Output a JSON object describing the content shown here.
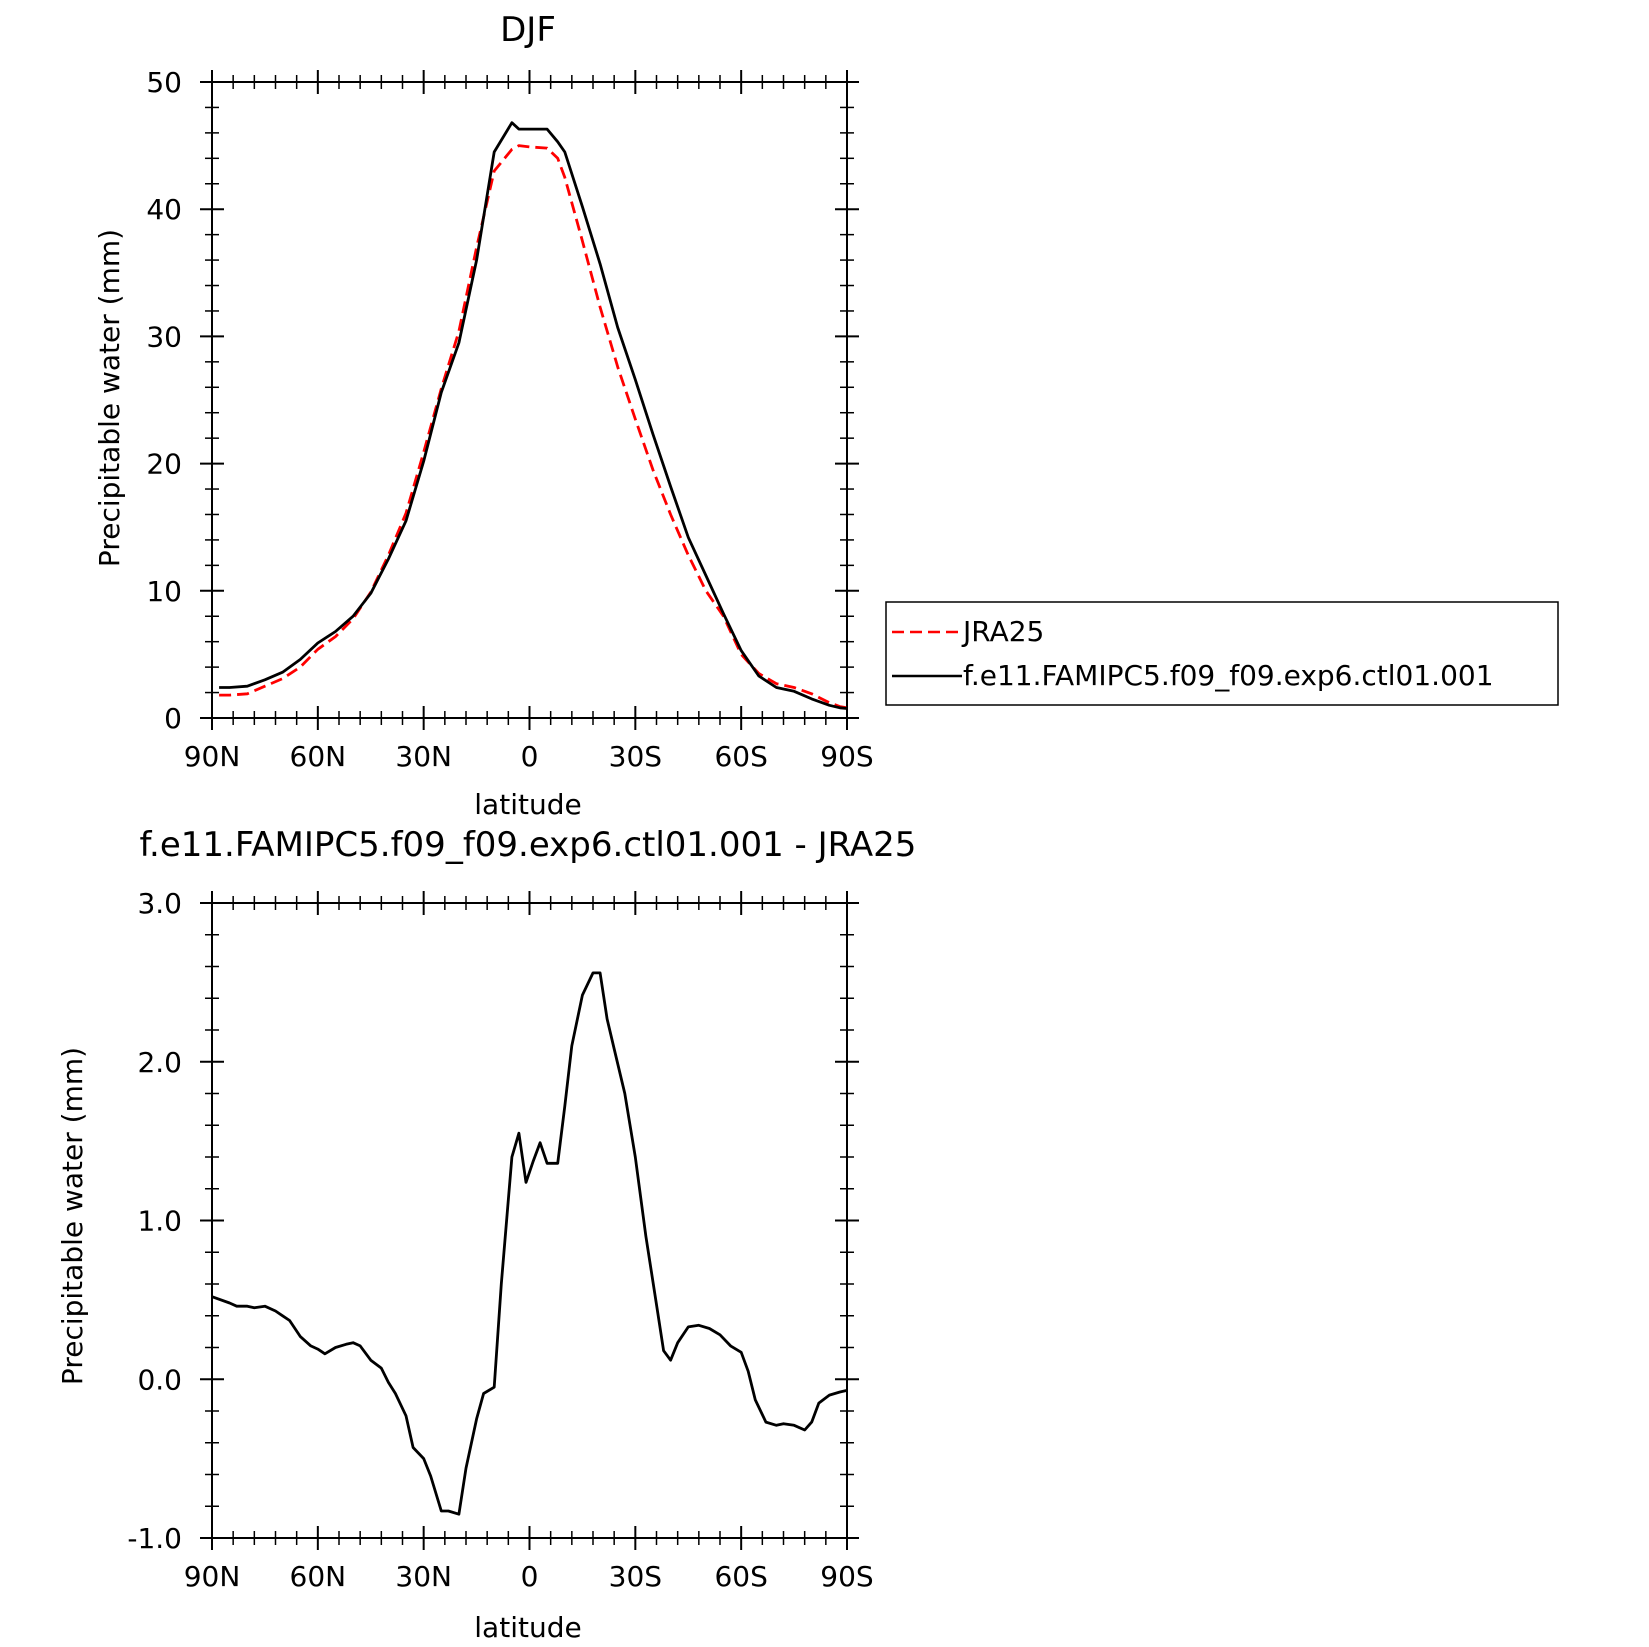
{
  "chart_data": [
    {
      "type": "line",
      "title": "DJF",
      "xlabel": "latitude",
      "ylabel": "Precipitable water (mm)",
      "xlim": [
        90,
        -90
      ],
      "ylim": [
        0,
        50
      ],
      "xticks": [
        90,
        60,
        30,
        0,
        -30,
        -60,
        -90
      ],
      "xtick_labels": [
        "90N",
        "60N",
        "30N",
        "0",
        "30S",
        "60S",
        "90S"
      ],
      "yticks": [
        0,
        10,
        20,
        30,
        40,
        50
      ],
      "ytick_labels": [
        "0",
        "10",
        "20",
        "30",
        "40",
        "50"
      ],
      "legend": "right",
      "series": [
        {
          "name": "JRA25",
          "color": "#ff0000",
          "dash": "dashed",
          "x": [
            88,
            85,
            80,
            75,
            70,
            65,
            60,
            55,
            50,
            45,
            40,
            35,
            30,
            25,
            20,
            15,
            10,
            5,
            3,
            0,
            -5,
            -8,
            -10,
            -15,
            -20,
            -25,
            -30,
            -35,
            -40,
            -45,
            -50,
            -55,
            -60,
            -65,
            -70,
            -75,
            -80,
            -85,
            -88,
            -90
          ],
          "y": [
            1.8,
            1.8,
            1.9,
            2.5,
            3.1,
            4.0,
            5.4,
            6.4,
            7.8,
            9.9,
            12.8,
            16.1,
            20.9,
            25.9,
            30.4,
            37.0,
            43.0,
            44.7,
            45.0,
            44.9,
            44.8,
            44.0,
            42.5,
            37.5,
            32.3,
            27.6,
            23.5,
            19.5,
            16.0,
            12.8,
            10.0,
            8.0,
            5.0,
            3.5,
            2.7,
            2.4,
            1.9,
            1.2,
            0.9,
            0.8
          ]
        },
        {
          "name": "f.e11.FAMIPC5.f09_f09.exp6.ctl01.001",
          "color": "#000000",
          "dash": "solid",
          "x": [
            88,
            85,
            80,
            75,
            70,
            65,
            60,
            55,
            50,
            45,
            40,
            35,
            30,
            25,
            20,
            15,
            10,
            5,
            3,
            0,
            -5,
            -8,
            -10,
            -15,
            -20,
            -25,
            -30,
            -35,
            -40,
            -45,
            -50,
            -55,
            -60,
            -65,
            -70,
            -75,
            -80,
            -85,
            -88,
            -90
          ],
          "y": [
            2.4,
            2.4,
            2.5,
            3.0,
            3.6,
            4.6,
            5.9,
            6.8,
            8.0,
            9.8,
            12.5,
            15.5,
            20.2,
            25.6,
            29.5,
            36.0,
            44.5,
            46.8,
            46.3,
            46.3,
            46.3,
            45.3,
            44.5,
            40.2,
            35.7,
            30.7,
            26.6,
            22.3,
            18.2,
            14.2,
            11.2,
            8.2,
            5.3,
            3.3,
            2.4,
            2.1,
            1.5,
            1.0,
            0.8,
            0.75
          ]
        }
      ]
    },
    {
      "type": "line",
      "title": "f.e11.FAMIPC5.f09_f09.exp6.ctl01.001 - JRA25",
      "xlabel": "latitude",
      "ylabel": "Precipitable water (mm)",
      "xlim": [
        90,
        -90
      ],
      "ylim": [
        -1.0,
        3.0
      ],
      "xticks": [
        90,
        60,
        30,
        0,
        -30,
        -60,
        -90
      ],
      "xtick_labels": [
        "90N",
        "60N",
        "30N",
        "0",
        "30S",
        "60S",
        "90S"
      ],
      "yticks": [
        -1.0,
        0.0,
        1.0,
        2.0,
        3.0
      ],
      "ytick_labels": [
        "-1.0",
        "0.0",
        "1.0",
        "2.0",
        "3.0"
      ],
      "series": [
        {
          "color": "#000000",
          "dash": "solid",
          "x": [
            90,
            85,
            83,
            80,
            78,
            75,
            72,
            70,
            68,
            65,
            62,
            60,
            58,
            55,
            52,
            50,
            48,
            45,
            42,
            40,
            38,
            35,
            33,
            30,
            28,
            25,
            23,
            20,
            18,
            15,
            13,
            10,
            8,
            5,
            3,
            1,
            -1,
            -3,
            -5,
            -8,
            -10,
            -12,
            -15,
            -18,
            -20,
            -22,
            -24,
            -27,
            -30,
            -33,
            -36,
            -38,
            -40,
            -42,
            -45,
            -48,
            -51,
            -54,
            -57,
            -60,
            -62,
            -64,
            -67,
            -70,
            -72,
            -75,
            -78,
            -80,
            -82,
            -85,
            -88,
            -90
          ],
          "y": [
            0.52,
            0.48,
            0.46,
            0.46,
            0.45,
            0.46,
            0.43,
            0.4,
            0.37,
            0.27,
            0.21,
            0.19,
            0.16,
            0.2,
            0.22,
            0.23,
            0.21,
            0.12,
            0.07,
            -0.02,
            -0.09,
            -0.23,
            -0.43,
            -0.5,
            -0.61,
            -0.83,
            -0.83,
            -0.85,
            -0.56,
            -0.25,
            -0.09,
            -0.05,
            0.6,
            1.4,
            1.55,
            1.24,
            1.37,
            1.49,
            1.36,
            1.36,
            1.72,
            2.1,
            2.42,
            2.56,
            2.56,
            2.27,
            2.08,
            1.8,
            1.4,
            0.9,
            0.47,
            0.18,
            0.12,
            0.23,
            0.33,
            0.34,
            0.32,
            0.28,
            0.21,
            0.17,
            0.05,
            -0.13,
            -0.27,
            -0.29,
            -0.28,
            -0.29,
            -0.32,
            -0.27,
            -0.15,
            -0.1,
            -0.08,
            -0.07
          ]
        }
      ]
    }
  ]
}
